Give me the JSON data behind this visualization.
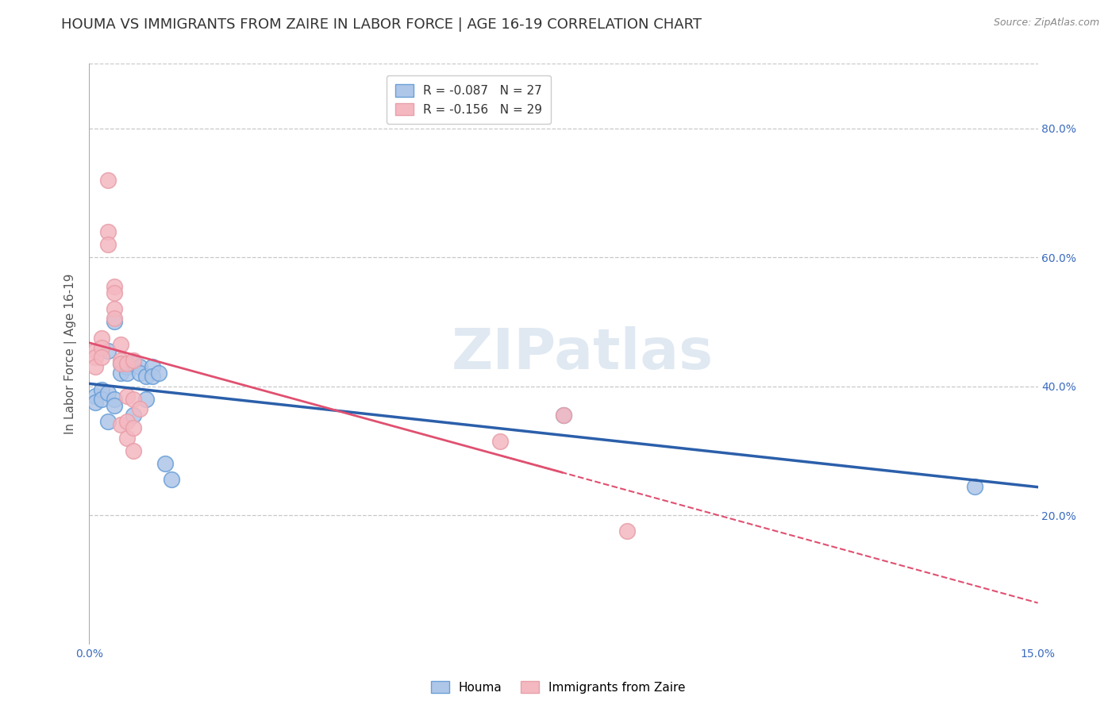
{
  "title": "HOUMA VS IMMIGRANTS FROM ZAIRE IN LABOR FORCE | AGE 16-19 CORRELATION CHART",
  "source": "Source: ZipAtlas.com",
  "ylabel": "In Labor Force | Age 16-19",
  "xlim": [
    0.0,
    0.15
  ],
  "ylim": [
    0.0,
    0.9
  ],
  "ytick_labels": [
    "20.0%",
    "40.0%",
    "60.0%",
    "80.0%"
  ],
  "ytick_values": [
    0.2,
    0.4,
    0.6,
    0.8
  ],
  "xtick_labels": [
    "0.0%",
    "15.0%"
  ],
  "xtick_values": [
    0.0,
    0.15
  ],
  "legend_entries": [
    {
      "label": "R = -0.087   N = 27",
      "color": "#aec6e8"
    },
    {
      "label": "R = -0.156   N = 29",
      "color": "#f4b8c1"
    }
  ],
  "houma_points": [
    [
      0.001,
      0.385
    ],
    [
      0.001,
      0.375
    ],
    [
      0.002,
      0.395
    ],
    [
      0.002,
      0.38
    ],
    [
      0.003,
      0.455
    ],
    [
      0.003,
      0.39
    ],
    [
      0.003,
      0.345
    ],
    [
      0.004,
      0.5
    ],
    [
      0.004,
      0.38
    ],
    [
      0.004,
      0.37
    ],
    [
      0.005,
      0.435
    ],
    [
      0.005,
      0.42
    ],
    [
      0.006,
      0.43
    ],
    [
      0.006,
      0.42
    ],
    [
      0.007,
      0.435
    ],
    [
      0.007,
      0.355
    ],
    [
      0.008,
      0.43
    ],
    [
      0.008,
      0.42
    ],
    [
      0.009,
      0.415
    ],
    [
      0.009,
      0.38
    ],
    [
      0.01,
      0.43
    ],
    [
      0.01,
      0.415
    ],
    [
      0.011,
      0.42
    ],
    [
      0.012,
      0.28
    ],
    [
      0.013,
      0.255
    ],
    [
      0.075,
      0.355
    ],
    [
      0.14,
      0.245
    ]
  ],
  "zaire_points": [
    [
      0.001,
      0.455
    ],
    [
      0.001,
      0.445
    ],
    [
      0.001,
      0.43
    ],
    [
      0.002,
      0.475
    ],
    [
      0.002,
      0.46
    ],
    [
      0.002,
      0.445
    ],
    [
      0.003,
      0.72
    ],
    [
      0.003,
      0.64
    ],
    [
      0.003,
      0.62
    ],
    [
      0.004,
      0.555
    ],
    [
      0.004,
      0.545
    ],
    [
      0.004,
      0.52
    ],
    [
      0.004,
      0.505
    ],
    [
      0.005,
      0.465
    ],
    [
      0.005,
      0.44
    ],
    [
      0.005,
      0.435
    ],
    [
      0.005,
      0.34
    ],
    [
      0.006,
      0.435
    ],
    [
      0.006,
      0.385
    ],
    [
      0.006,
      0.345
    ],
    [
      0.006,
      0.32
    ],
    [
      0.007,
      0.44
    ],
    [
      0.007,
      0.38
    ],
    [
      0.007,
      0.335
    ],
    [
      0.007,
      0.3
    ],
    [
      0.008,
      0.365
    ],
    [
      0.065,
      0.315
    ],
    [
      0.075,
      0.355
    ],
    [
      0.085,
      0.175
    ]
  ],
  "houma_line_color": "#2b5faa",
  "zaire_line_color": "#e05070",
  "zaire_line_dash": [
    6,
    4
  ],
  "houma_dot_color": "#aec6e8",
  "zaire_dot_color": "#f4b8c1",
  "houma_dot_edge": "#6a9fd8",
  "zaire_dot_edge": "#e8a0aa",
  "background_color": "#ffffff",
  "grid_color": "#c8c8c8",
  "title_fontsize": 13,
  "axis_label_fontsize": 11,
  "tick_fontsize": 10,
  "watermark": "ZIPatlas",
  "watermark_color": "#c8d8e8",
  "watermark_fontsize": 52
}
